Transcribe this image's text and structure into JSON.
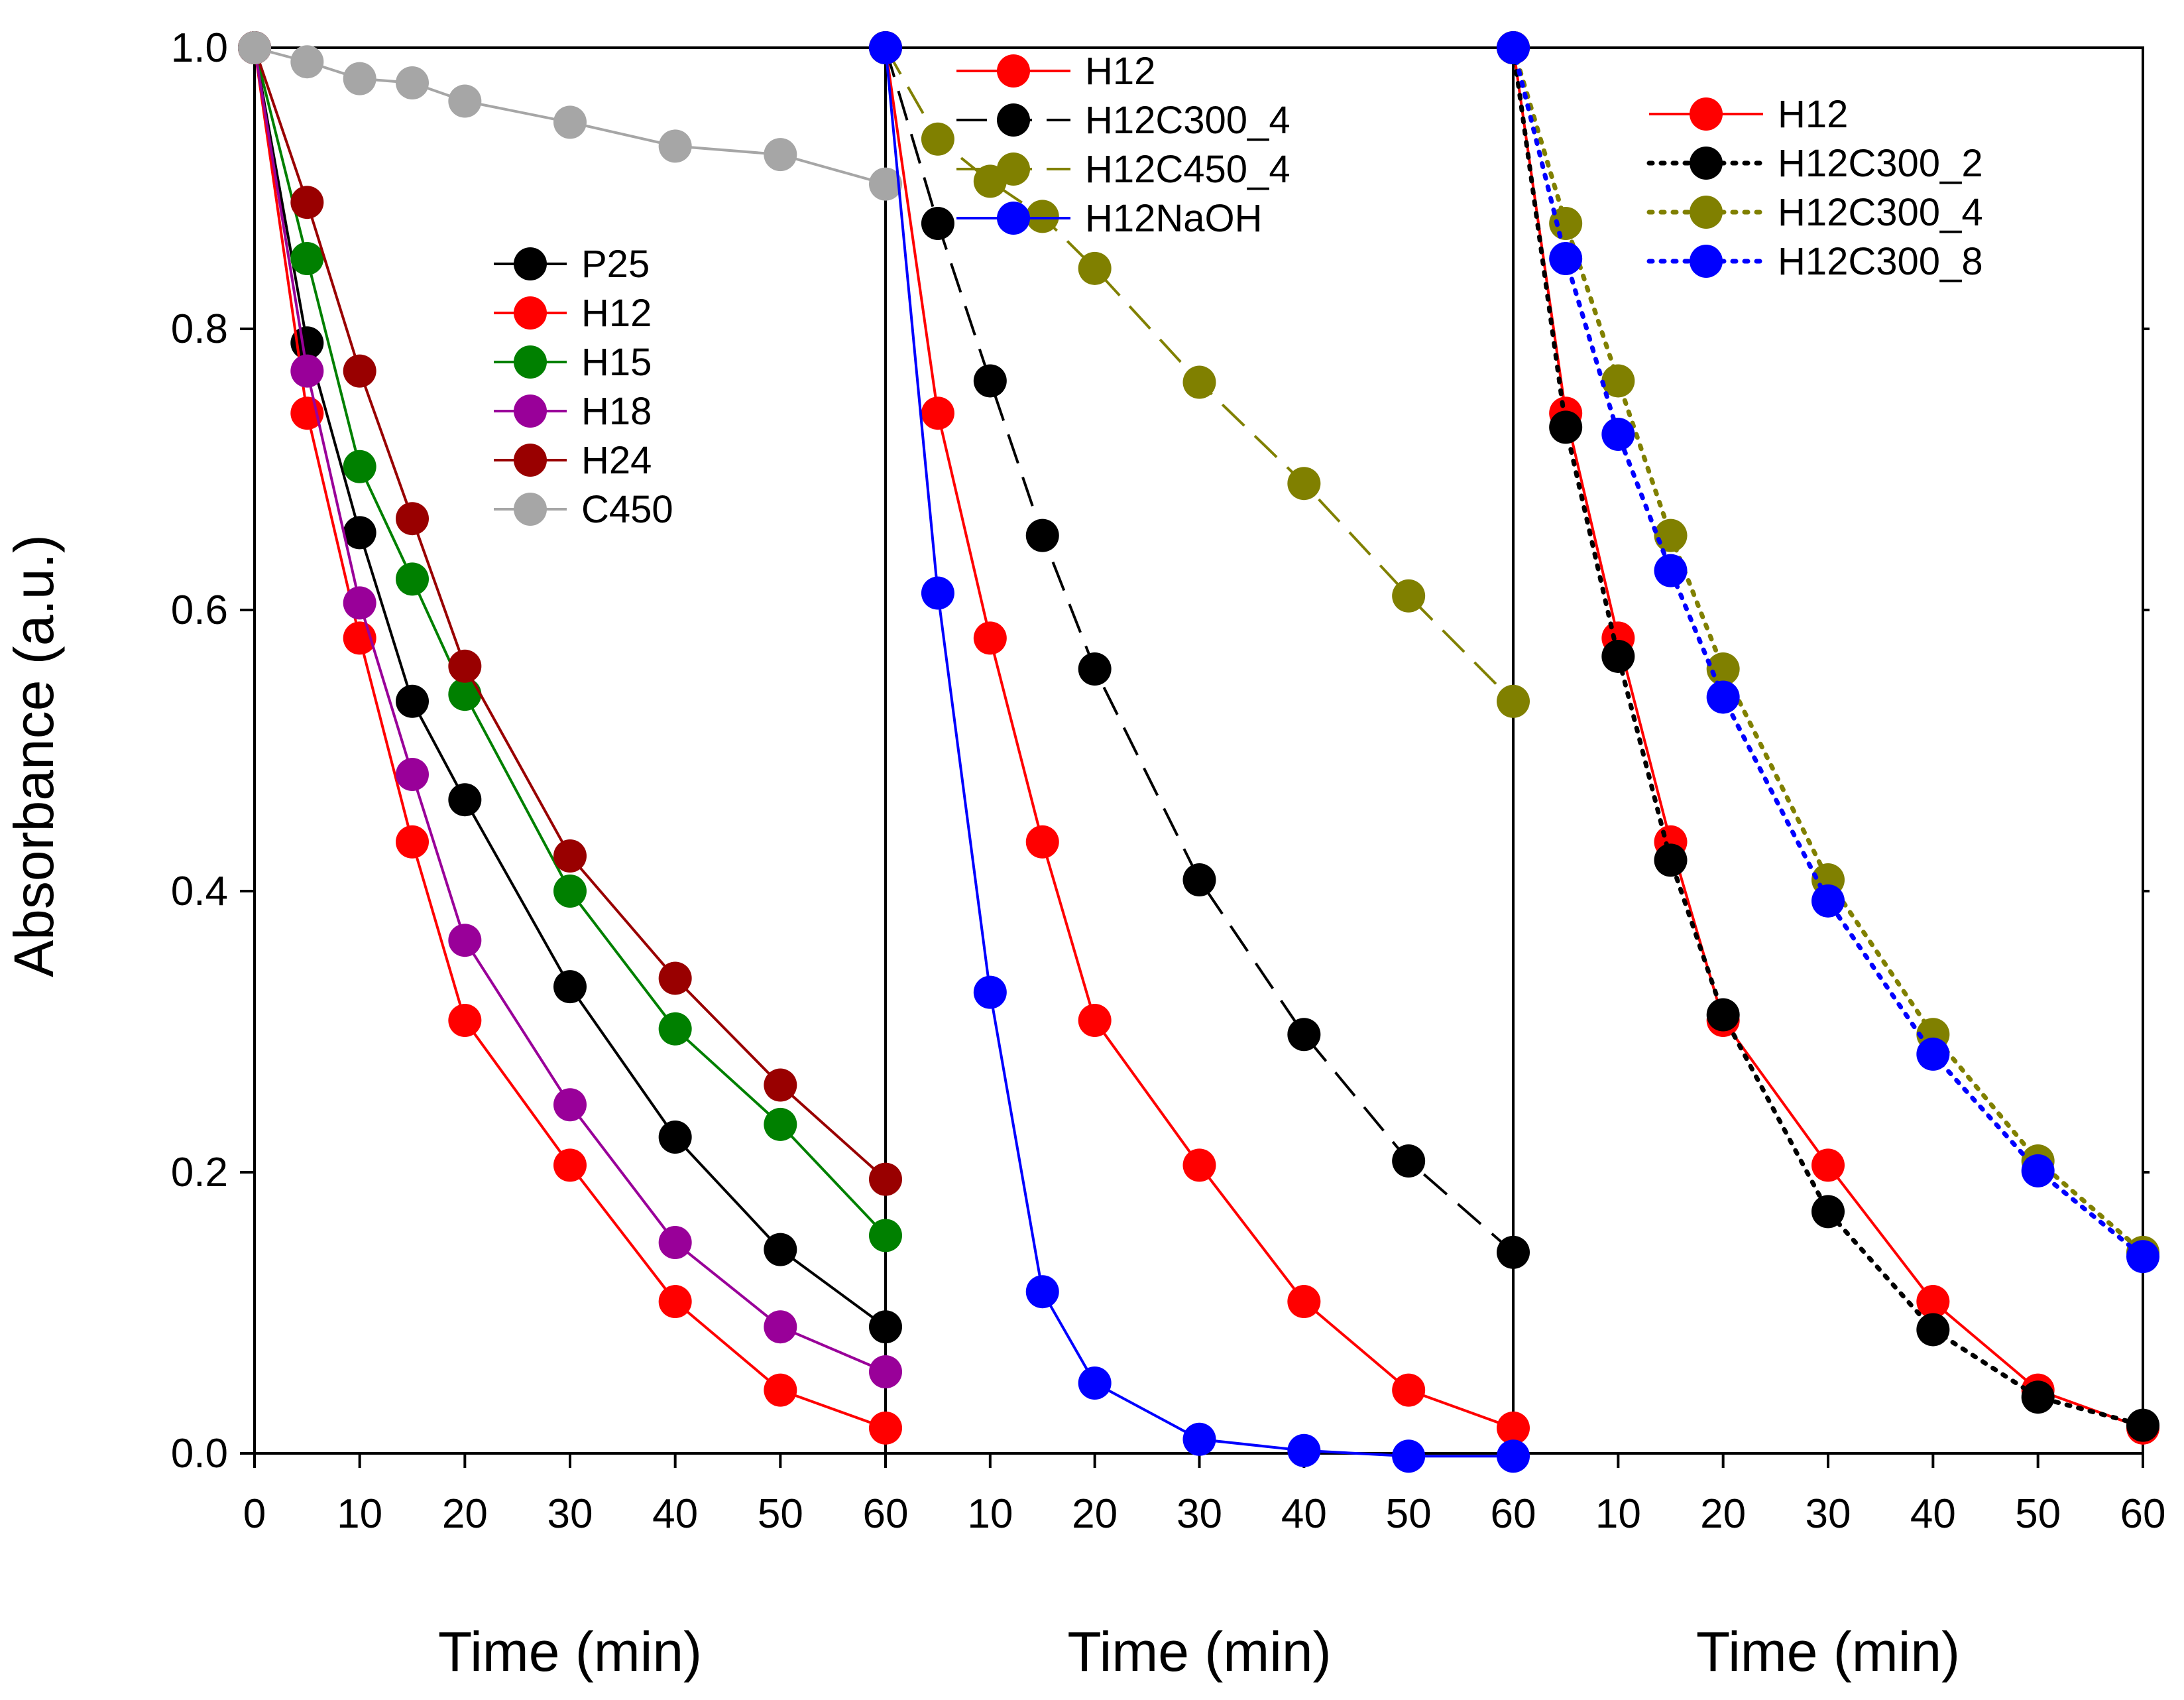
{
  "chart_data": {
    "type": "line",
    "ylabel": "Absorbance (a.u.)",
    "ylim": [
      0,
      1.0
    ],
    "yticks": [
      "0.0",
      "0.2",
      "0.4",
      "0.6",
      "0.8",
      "1.0"
    ],
    "colors": {
      "black": "#000000",
      "red": "#ff0000",
      "green": "#008000",
      "purple": "#990099",
      "darkred": "#990000",
      "gray": "#a6a6a6",
      "olive": "#808000",
      "blue": "#0000ff"
    },
    "panels": [
      {
        "xlabel": "Time (min)",
        "xlim": [
          0,
          60
        ],
        "xticks": [
          "0",
          "10",
          "20",
          "30",
          "40",
          "50",
          "60"
        ],
        "legend_position": "center",
        "series": [
          {
            "name": "P25",
            "color": "black",
            "dash": "solid",
            "x": [
              0,
              5,
              10,
              15,
              20,
              30,
              40,
              50,
              60
            ],
            "y": [
              1.0,
              0.79,
              0.655,
              0.535,
              0.465,
              0.332,
              0.225,
              0.145,
              0.09
            ]
          },
          {
            "name": "H12",
            "color": "red",
            "dash": "solid",
            "x": [
              0,
              5,
              10,
              15,
              20,
              30,
              40,
              50,
              60
            ],
            "y": [
              1.0,
              0.74,
              0.58,
              0.435,
              0.308,
              0.205,
              0.108,
              0.045,
              0.018
            ]
          },
          {
            "name": "H15",
            "color": "green",
            "dash": "solid",
            "x": [
              0,
              5,
              10,
              15,
              20,
              30,
              40,
              50,
              60
            ],
            "y": [
              1.0,
              0.85,
              0.702,
              0.622,
              0.54,
              0.4,
              0.302,
              0.234,
              0.155
            ]
          },
          {
            "name": "H18",
            "color": "purple",
            "dash": "solid",
            "x": [
              0,
              5,
              10,
              15,
              20,
              30,
              40,
              50,
              60
            ],
            "y": [
              1.0,
              0.77,
              0.605,
              0.483,
              0.365,
              0.248,
              0.15,
              0.09,
              0.058
            ]
          },
          {
            "name": "H24",
            "color": "darkred",
            "dash": "solid",
            "x": [
              0,
              5,
              10,
              15,
              20,
              30,
              40,
              50,
              60
            ],
            "y": [
              1.0,
              0.89,
              0.77,
              0.665,
              0.56,
              0.425,
              0.338,
              0.262,
              0.195
            ]
          },
          {
            "name": "C450",
            "color": "gray",
            "dash": "solid",
            "x": [
              0,
              5,
              10,
              15,
              20,
              30,
              40,
              50,
              60
            ],
            "y": [
              1.0,
              0.99,
              0.978,
              0.975,
              0.962,
              0.947,
              0.93,
              0.924,
              0.903
            ]
          }
        ]
      },
      {
        "xlabel": "Time (min)",
        "xlim": [
          0,
          60
        ],
        "xticks": [
          "",
          "10",
          "20",
          "30",
          "40",
          "50",
          "60"
        ],
        "legend_position": "top",
        "series": [
          {
            "name": "H12",
            "color": "red",
            "dash": "solid",
            "x": [
              0,
              5,
              10,
              15,
              20,
              30,
              40,
              50,
              60
            ],
            "y": [
              1.0,
              0.74,
              0.58,
              0.435,
              0.308,
              0.205,
              0.108,
              0.045,
              0.018
            ]
          },
          {
            "name": "H12C300_4",
            "color": "black",
            "dash": "dashed",
            "x": [
              0,
              5,
              10,
              15,
              20,
              30,
              40,
              50,
              60
            ],
            "y": [
              1.0,
              0.875,
              0.763,
              0.653,
              0.558,
              0.408,
              0.298,
              0.208,
              0.143
            ]
          },
          {
            "name": "H12C450_4",
            "color": "olive",
            "dash": "dashed",
            "x": [
              0,
              5,
              10,
              15,
              20,
              30,
              40,
              50,
              60
            ],
            "y": [
              1.0,
              0.935,
              0.905,
              0.88,
              0.843,
              0.762,
              0.69,
              0.61,
              0.535
            ]
          },
          {
            "name": "H12NaOH",
            "color": "blue",
            "dash": "solid",
            "x": [
              0,
              5,
              10,
              15,
              20,
              30,
              40,
              50,
              60
            ],
            "y": [
              1.0,
              0.612,
              0.328,
              0.115,
              0.05,
              0.01,
              0.002,
              -0.002,
              -0.002
            ]
          }
        ]
      },
      {
        "xlabel": "Time (min)",
        "xlim": [
          0,
          60
        ],
        "xticks": [
          "",
          "10",
          "20",
          "30",
          "40",
          "50",
          "60"
        ],
        "legend_position": "top-right",
        "series": [
          {
            "name": "H12",
            "color": "red",
            "dash": "solid",
            "x": [
              0,
              5,
              10,
              15,
              20,
              30,
              40,
              50,
              60
            ],
            "y": [
              1.0,
              0.74,
              0.58,
              0.435,
              0.308,
              0.205,
              0.108,
              0.045,
              0.018
            ]
          },
          {
            "name": "H12C300_2",
            "color": "black",
            "dash": "dotted",
            "x": [
              0,
              5,
              10,
              15,
              20,
              30,
              40,
              50,
              60
            ],
            "y": [
              1.0,
              0.73,
              0.567,
              0.422,
              0.312,
              0.172,
              0.088,
              0.04,
              0.02
            ]
          },
          {
            "name": "H12C300_4",
            "color": "olive",
            "dash": "dotted",
            "x": [
              0,
              5,
              10,
              15,
              20,
              30,
              40,
              50,
              60
            ],
            "y": [
              1.0,
              0.875,
              0.763,
              0.653,
              0.558,
              0.408,
              0.298,
              0.208,
              0.143
            ]
          },
          {
            "name": "H12C300_8",
            "color": "blue",
            "dash": "dotted",
            "x": [
              0,
              5,
              10,
              15,
              20,
              30,
              40,
              50,
              60
            ],
            "y": [
              1.0,
              0.85,
              0.725,
              0.628,
              0.538,
              0.393,
              0.284,
              0.201,
              0.14
            ]
          }
        ]
      }
    ]
  }
}
